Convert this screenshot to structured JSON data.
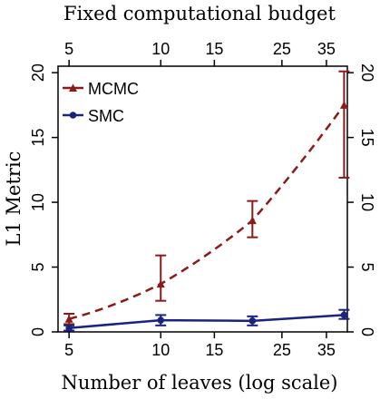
{
  "chart_data": {
    "type": "line",
    "title": "Fixed computational budget",
    "xlabel": "Number of leaves (log scale)",
    "ylabel": "L1 Metric",
    "x_scale": "log",
    "xlim": [
      4.6,
      41
    ],
    "ylim": [
      0,
      20.5
    ],
    "x_ticks": [
      5,
      10,
      15,
      25,
      35
    ],
    "x_tick_labels": [
      "5",
      "10",
      "15",
      "25",
      "35"
    ],
    "y_ticks": [
      0,
      5,
      10,
      15,
      20
    ],
    "y_tick_labels": [
      "0",
      "5",
      "10",
      "15",
      "20"
    ],
    "legend_position": "top-left",
    "grid": false,
    "series": [
      {
        "name": "MCMC",
        "color": "#8b1a1a",
        "line_style": "dashed",
        "x": [
          5,
          10,
          20,
          40
        ],
        "y": [
          1.0,
          3.7,
          8.6,
          17.5
        ],
        "y_low": [
          0.6,
          2.4,
          7.3,
          11.9
        ],
        "y_high": [
          1.4,
          5.9,
          10.1,
          20.1
        ]
      },
      {
        "name": "SMC",
        "color": "#1a237e",
        "line_style": "solid",
        "x": [
          5,
          10,
          20,
          40
        ],
        "y": [
          0.3,
          0.9,
          0.85,
          1.3
        ],
        "y_low": [
          0.1,
          0.5,
          0.5,
          1.0
        ],
        "y_high": [
          0.5,
          1.3,
          1.2,
          1.7
        ]
      }
    ]
  }
}
